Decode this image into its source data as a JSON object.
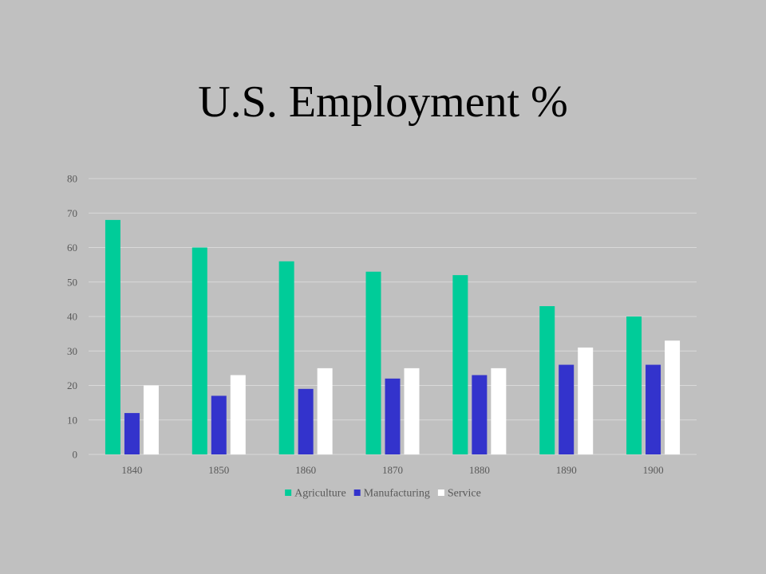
{
  "slide": {
    "title": "U.S. Employment %"
  },
  "chart_data": {
    "type": "bar",
    "title": "",
    "xlabel": "",
    "ylabel": "",
    "categories": [
      "1840",
      "1850",
      "1860",
      "1870",
      "1880",
      "1890",
      "1900"
    ],
    "series": [
      {
        "name": "Agriculture",
        "color": "#00cc99",
        "values": [
          68,
          60,
          56,
          53,
          52,
          43,
          40
        ]
      },
      {
        "name": "Manufacturing",
        "color": "#3333cc",
        "values": [
          12,
          17,
          19,
          22,
          23,
          26,
          26
        ]
      },
      {
        "name": "Service",
        "color": "#ffffff",
        "values": [
          20,
          23,
          25,
          25,
          25,
          31,
          33
        ]
      }
    ],
    "ylim": [
      0,
      80
    ],
    "yticks": [
      0,
      10,
      20,
      30,
      40,
      50,
      60,
      70,
      80
    ],
    "grid": true,
    "legend_position": "bottom",
    "gridline_color": "#d9d9d9",
    "axis_label_color": "#595959"
  }
}
